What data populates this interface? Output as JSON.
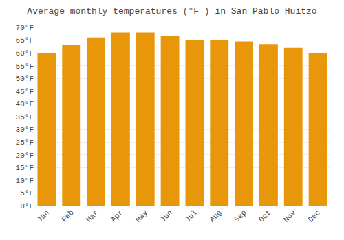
{
  "chart_data": {
    "type": "bar",
    "title": "Average monthly temperatures (°F ) in San Pablo Huitzo",
    "categories": [
      "Jan",
      "Feb",
      "Mar",
      "Apr",
      "May",
      "Jun",
      "Jul",
      "Aug",
      "Sep",
      "Oct",
      "Nov",
      "Dec"
    ],
    "values": [
      60,
      63,
      66,
      68,
      68,
      66.5,
      65,
      65,
      64.5,
      63.5,
      62,
      60
    ],
    "color": "#E8960A",
    "ylim": [
      0,
      70
    ],
    "yticks": [
      {
        "value": 0,
        "label": "0°F"
      },
      {
        "value": 5,
        "label": "5°F"
      },
      {
        "value": 10,
        "label": "10°F"
      },
      {
        "value": 15,
        "label": "15°F"
      },
      {
        "value": 20,
        "label": "20°F"
      },
      {
        "value": 25,
        "label": "25°F"
      },
      {
        "value": 30,
        "label": "30°F"
      },
      {
        "value": 35,
        "label": "35°F"
      },
      {
        "value": 40,
        "label": "40°F"
      },
      {
        "value": 45,
        "label": "45°F"
      },
      {
        "value": 50,
        "label": "50°F"
      },
      {
        "value": 55,
        "label": "55°F"
      },
      {
        "value": 60,
        "label": "60°F"
      },
      {
        "value": 65,
        "label": "65°F"
      },
      {
        "value": 70,
        "label": "70°F"
      }
    ],
    "grid": true
  }
}
